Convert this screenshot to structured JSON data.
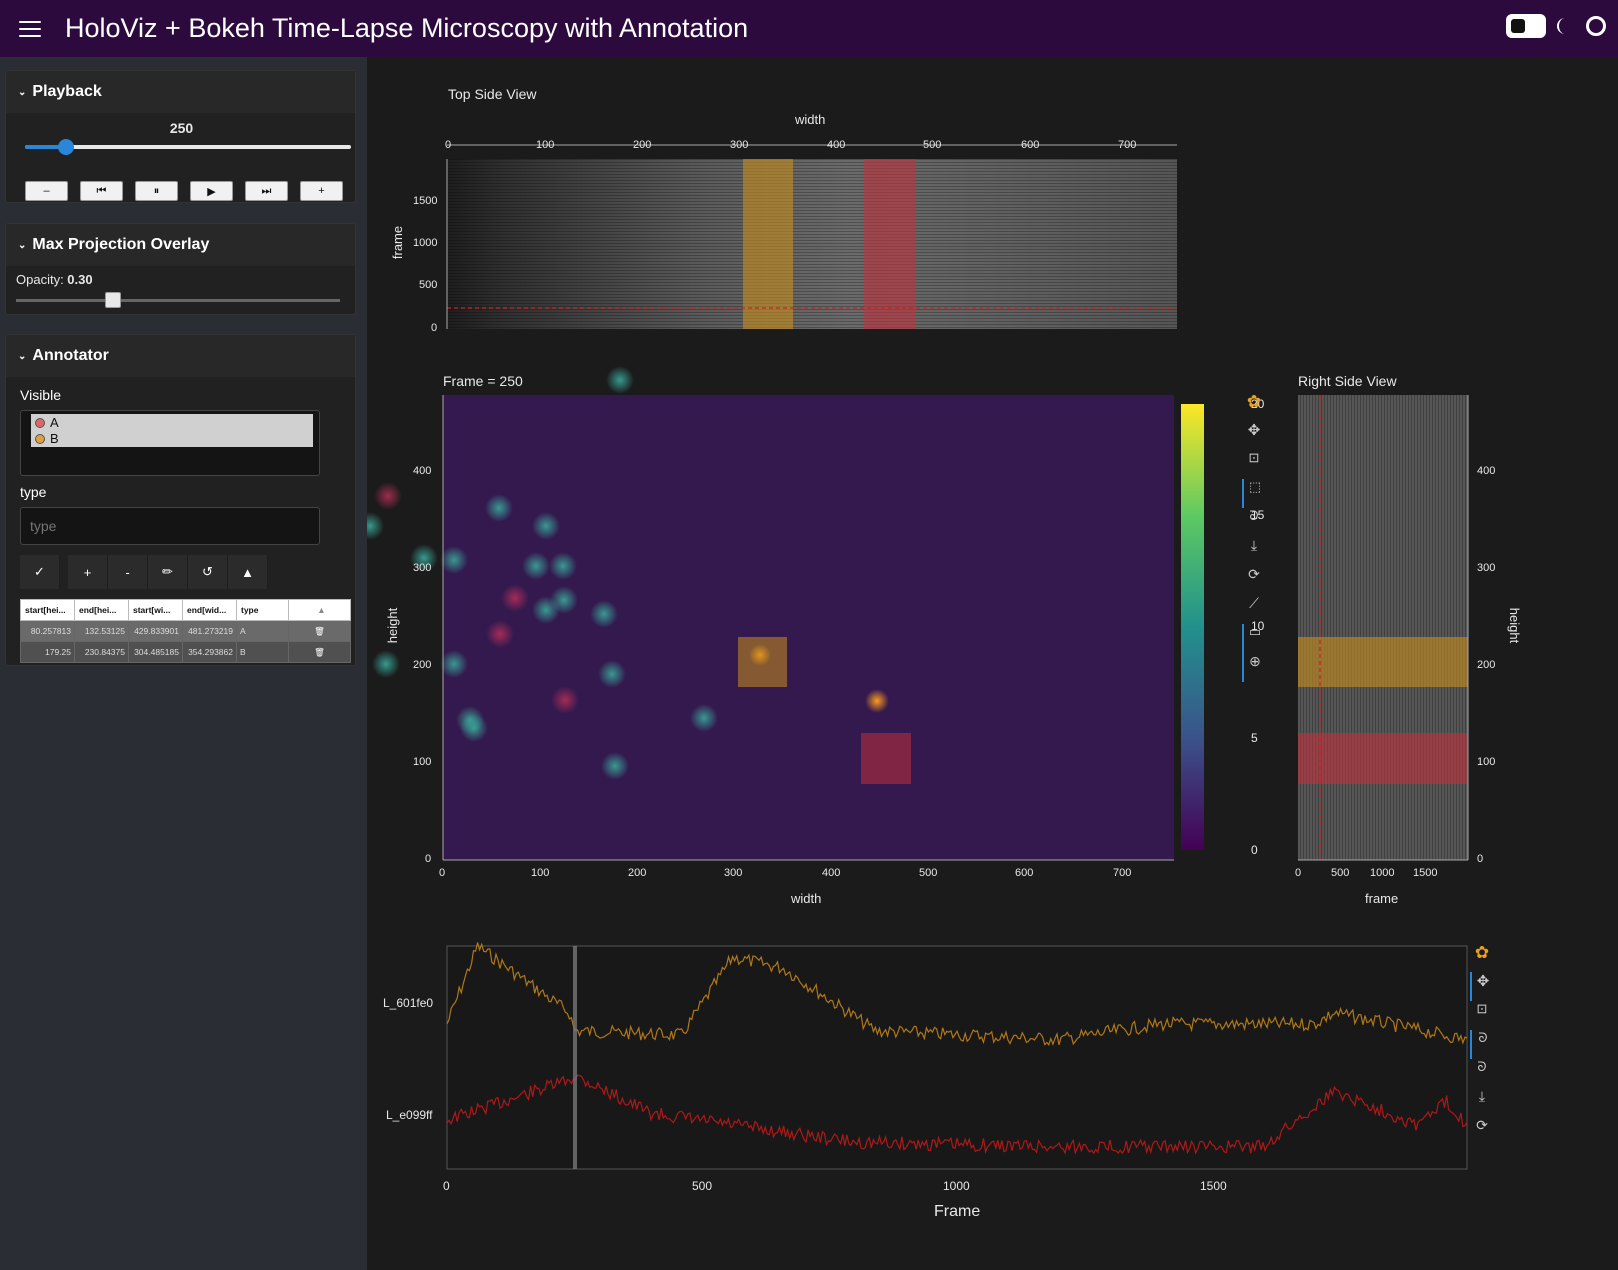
{
  "app": {
    "title": "HoloViz + Bokeh Time-Lapse Microscopy with Annotation"
  },
  "playback": {
    "header": "Playback",
    "frame_value": "250",
    "frame_fraction": 0.125,
    "buttons": [
      {
        "name": "decrement-button",
        "glyph": "–"
      },
      {
        "name": "first-frame-button",
        "glyph": "⏮"
      },
      {
        "name": "pause-button",
        "glyph": "⏸"
      },
      {
        "name": "play-button",
        "glyph": "▶"
      },
      {
        "name": "last-frame-button",
        "glyph": "⏭"
      },
      {
        "name": "increment-button",
        "glyph": "+"
      }
    ]
  },
  "overlay": {
    "header": "Max Projection Overlay",
    "opacity_label": "Opacity: ",
    "opacity_value": "0.30",
    "opacity_fraction": 0.3
  },
  "annotator": {
    "header": "Annotator",
    "visible_label": "Visible",
    "visible_options": [
      {
        "label": "A",
        "color": "#e06666"
      },
      {
        "label": "B",
        "color": "#e0a040"
      }
    ],
    "type_label": "type",
    "type_placeholder": "type",
    "tools": [
      {
        "name": "commit-button",
        "glyph": "✓"
      },
      {
        "name": "add-button",
        "glyph": "+"
      },
      {
        "name": "remove-button",
        "glyph": "-"
      },
      {
        "name": "edit-button",
        "glyph": "✏"
      },
      {
        "name": "undo-button",
        "glyph": "↺"
      },
      {
        "name": "collapse-button",
        "glyph": "▲"
      }
    ],
    "table": {
      "columns": [
        "start[hei...",
        "end[hei...",
        "start[wi...",
        "end[wid...",
        "type"
      ],
      "rows": [
        [
          "80.257813",
          "132.53125",
          "429.833901",
          "481.273219",
          "A"
        ],
        [
          "179.25",
          "230.84375",
          "304.485185",
          "354.293862",
          "B"
        ]
      ]
    }
  },
  "top_view": {
    "title": "Top Side View",
    "xlabel": "width",
    "ylabel": "frame",
    "xticks": [
      "0",
      "100",
      "200",
      "300",
      "400",
      "500",
      "600",
      "700"
    ],
    "yticks": [
      "0",
      "500",
      "1000",
      "1500"
    ]
  },
  "frame_view": {
    "title": "Frame = 250",
    "xlabel": "width",
    "ylabel": "height",
    "xticks": [
      "0",
      "100",
      "200",
      "300",
      "400",
      "500",
      "600",
      "700"
    ],
    "yticks": [
      "0",
      "100",
      "200",
      "300",
      "400"
    ],
    "colorbar_ticks": [
      "0",
      "5",
      "10",
      "15",
      "20"
    ]
  },
  "right_view": {
    "title": "Right Side View",
    "xlabel": "frame",
    "ylabel": "height",
    "xticks": [
      "0",
      "500",
      "1000",
      "1500"
    ],
    "yticks": [
      "0",
      "100",
      "200",
      "300",
      "400"
    ]
  },
  "trace_view": {
    "xlabel": "Frame",
    "xticks": [
      "0",
      "500",
      "1000",
      "1500"
    ],
    "series": [
      {
        "name": "L_601fe0",
        "color": "#b07818"
      },
      {
        "name": "L_e099ff",
        "color": "#b01818"
      }
    ]
  },
  "colors": {
    "header_bg": "#2d0a3e",
    "annotation_a": "#c0303c",
    "annotation_b": "#c8901c",
    "accent": "#2a86d8"
  },
  "toolbar_icons": [
    "bokeh-logo-icon",
    "pan-icon",
    "box-zoom-icon",
    "box-select-icon",
    "lasso-icon",
    "save-icon",
    "reset-icon",
    "ruler-icon",
    "comment-icon",
    "crosshair-icon"
  ]
}
